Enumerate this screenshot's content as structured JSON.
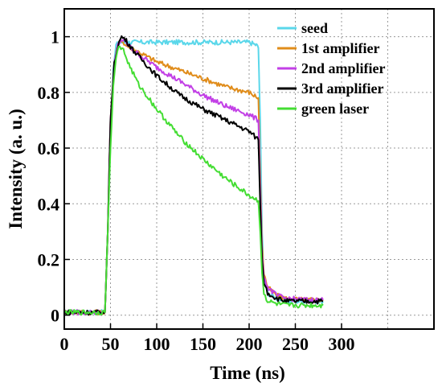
{
  "chart_data": {
    "type": "line",
    "title": "",
    "xlabel": "Time (ns)",
    "ylabel": "Intensity (a. u.)",
    "xlim": [
      0,
      400
    ],
    "ylim": [
      -0.05,
      1.1
    ],
    "xticks": [
      0,
      50,
      100,
      150,
      200,
      250,
      300
    ],
    "yticks": [
      0,
      0.2,
      0.4,
      0.6,
      0.8,
      1
    ],
    "xtick_labels": [
      "0",
      "50",
      "100",
      "150",
      "200",
      "250",
      "300"
    ],
    "ytick_labels": [
      "0",
      "0.2",
      "0.4",
      "0.6",
      "0.8",
      "1"
    ],
    "grid": true,
    "legend_position": "top-right",
    "series": [
      {
        "name": "seed",
        "color": "#5ad7ea",
        "x": [
          0,
          20,
          44,
          47,
          50,
          53,
          56,
          60,
          65,
          70,
          100,
          150,
          200,
          208,
          210,
          212,
          214,
          216,
          220,
          230,
          240,
          260,
          280
        ],
        "y": [
          0.01,
          0.01,
          0.01,
          0.3,
          0.62,
          0.88,
          0.97,
          0.98,
          0.98,
          0.98,
          0.98,
          0.98,
          0.98,
          0.97,
          0.96,
          0.7,
          0.3,
          0.12,
          0.08,
          0.06,
          0.05,
          0.05,
          0.05
        ]
      },
      {
        "name": "1st amplifier",
        "color": "#e08c1a",
        "x": [
          0,
          20,
          44,
          47,
          50,
          54,
          58,
          62,
          66,
          75,
          100,
          125,
          150,
          175,
          200,
          210,
          212,
          214,
          216,
          220,
          230,
          240,
          260,
          280
        ],
        "y": [
          0.01,
          0.01,
          0.01,
          0.3,
          0.7,
          0.9,
          0.97,
          0.99,
          0.97,
          0.955,
          0.91,
          0.88,
          0.85,
          0.82,
          0.8,
          0.78,
          0.5,
          0.25,
          0.15,
          0.1,
          0.07,
          0.06,
          0.055,
          0.055
        ]
      },
      {
        "name": "2nd amplifier",
        "color": "#c23fe6",
        "x": [
          0,
          20,
          44,
          47,
          50,
          54,
          58,
          62,
          66,
          75,
          100,
          125,
          150,
          175,
          200,
          210,
          212,
          214,
          216,
          220,
          230,
          240,
          260,
          280
        ],
        "y": [
          0.01,
          0.01,
          0.01,
          0.3,
          0.7,
          0.9,
          0.97,
          0.99,
          0.98,
          0.95,
          0.89,
          0.84,
          0.79,
          0.75,
          0.72,
          0.7,
          0.45,
          0.22,
          0.14,
          0.1,
          0.07,
          0.06,
          0.055,
          0.055
        ]
      },
      {
        "name": "3rd amplifier",
        "color": "#000000",
        "x": [
          0,
          20,
          44,
          47,
          50,
          54,
          58,
          62,
          66,
          75,
          100,
          125,
          150,
          175,
          200,
          210,
          212,
          214,
          216,
          220,
          230,
          240,
          260,
          280
        ],
        "y": [
          0.01,
          0.01,
          0.01,
          0.3,
          0.7,
          0.9,
          0.97,
          1.0,
          0.99,
          0.95,
          0.86,
          0.79,
          0.74,
          0.7,
          0.66,
          0.63,
          0.4,
          0.2,
          0.12,
          0.08,
          0.06,
          0.05,
          0.05,
          0.05
        ]
      },
      {
        "name": "green laser",
        "color": "#44dd33",
        "x": [
          0,
          20,
          44,
          47,
          50,
          53,
          56,
          60,
          64,
          70,
          80,
          100,
          125,
          150,
          175,
          200,
          210,
          212,
          214,
          216,
          220,
          230,
          240,
          260,
          280
        ],
        "y": [
          0.01,
          0.01,
          0.01,
          0.3,
          0.6,
          0.82,
          0.93,
          0.97,
          0.95,
          0.9,
          0.83,
          0.74,
          0.64,
          0.56,
          0.49,
          0.43,
          0.41,
          0.3,
          0.15,
          0.08,
          0.05,
          0.04,
          0.035,
          0.035,
          0.035
        ]
      }
    ]
  }
}
